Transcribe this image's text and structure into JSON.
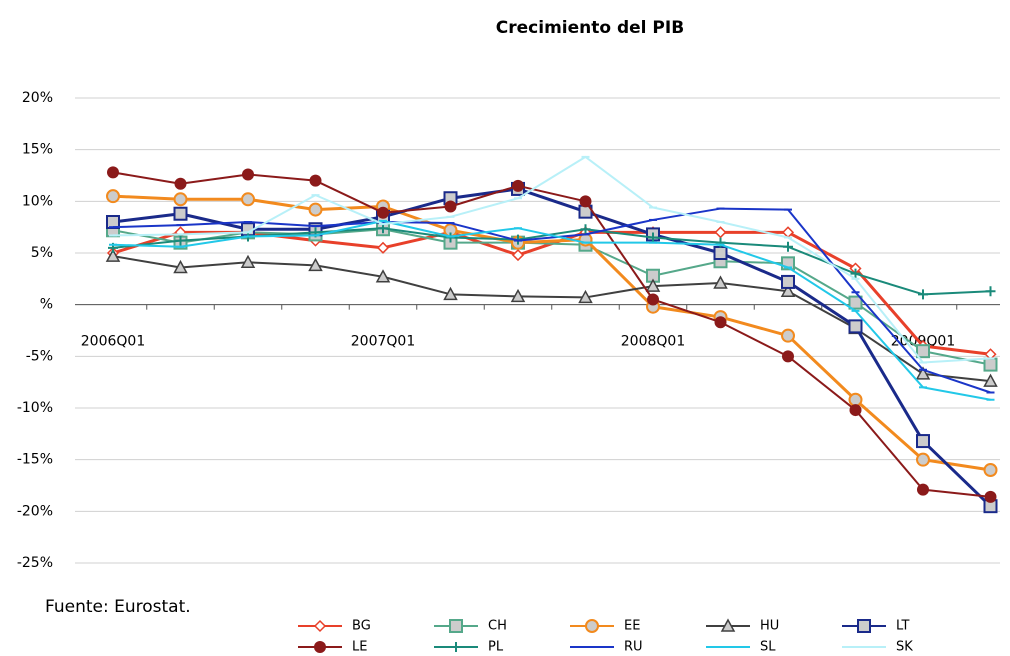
{
  "chart_data": {
    "type": "line",
    "title": "Crecimiento del PIB",
    "source": "Fuente: Eurostat.",
    "categories": [
      "2006Q01",
      null,
      null,
      null,
      "2007Q01",
      null,
      null,
      null,
      "2008Q01",
      null,
      null,
      null,
      "2009Q01",
      null
    ],
    "ylim": [
      -25,
      20
    ],
    "yticks": [
      {
        "value": -25,
        "label": "-25%"
      },
      {
        "value": -20,
        "label": "-20%"
      },
      {
        "value": -15,
        "label": "-15%"
      },
      {
        "value": -10,
        "label": "-10%"
      },
      {
        "value": -5,
        "label": "-5%"
      },
      {
        "value": 0,
        "label": "%"
      },
      {
        "value": 5,
        "label": "5%"
      },
      {
        "value": 10,
        "label": "10%"
      },
      {
        "value": 15,
        "label": "15%"
      },
      {
        "value": 20,
        "label": "20%"
      }
    ],
    "grid": true,
    "series": [
      {
        "name": "BG",
        "color": "#e8402a",
        "marker": "diamond",
        "values": [
          5.0,
          7.0,
          7.0,
          6.2,
          5.5,
          7.0,
          4.8,
          7.0,
          7.0,
          7.0,
          7.0,
          3.5,
          -4.0,
          -4.8
        ]
      },
      {
        "name": "CH",
        "color": "#55a88a",
        "marker": "square",
        "values": [
          7.2,
          6.0,
          7.0,
          6.8,
          7.3,
          6.0,
          6.0,
          5.8,
          2.8,
          4.2,
          4.0,
          0.2,
          -4.5,
          -5.8
        ]
      },
      {
        "name": "EE",
        "color": "#f28a1e",
        "marker": "circle",
        "values": [
          10.5,
          10.2,
          10.2,
          9.2,
          9.5,
          7.2,
          6.0,
          6.3,
          -0.2,
          -1.2,
          -3.0,
          -9.2,
          -15.0,
          -16.0
        ]
      },
      {
        "name": "HU",
        "color": "#404040",
        "marker": "triangle",
        "values": [
          4.7,
          3.6,
          4.1,
          3.8,
          2.7,
          1.0,
          0.8,
          0.7,
          1.8,
          2.1,
          1.3,
          -2.3,
          -6.7,
          -7.4
        ]
      },
      {
        "name": "LT",
        "color": "#1a2a8a",
        "marker": "square",
        "values": [
          8.0,
          8.8,
          7.3,
          7.3,
          8.5,
          10.3,
          11.2,
          9.0,
          6.8,
          5.0,
          2.2,
          -2.1,
          -13.2,
          -19.5
        ]
      },
      {
        "name": "LE",
        "color": "#8b1a1a",
        "marker": "dot",
        "values": [
          12.8,
          11.7,
          12.6,
          12.0,
          8.9,
          9.5,
          11.5,
          10.0,
          0.5,
          -1.7,
          -5.0,
          -10.2,
          -17.9,
          -18.6
        ]
      },
      {
        "name": "PL",
        "color": "#1a8a7a",
        "marker": "plus",
        "values": [
          5.5,
          6.2,
          6.6,
          7.0,
          7.4,
          6.5,
          6.3,
          7.3,
          6.5,
          6.0,
          5.6,
          3.0,
          1.0,
          1.3
        ]
      },
      {
        "name": "RU",
        "color": "#1a35c8",
        "marker": "dash",
        "values": [
          7.5,
          7.7,
          8.0,
          7.6,
          8.0,
          7.9,
          6.2,
          6.8,
          8.2,
          9.3,
          9.2,
          1.2,
          -6.3,
          -8.5
        ]
      },
      {
        "name": "SL",
        "color": "#22c8e8",
        "marker": "dash",
        "values": [
          5.8,
          5.6,
          6.6,
          6.7,
          8.1,
          6.6,
          7.4,
          6.0,
          6.0,
          5.8,
          3.6,
          -0.6,
          -8.0,
          -9.2
        ]
      },
      {
        "name": "SK",
        "color": "#b8f0f8",
        "marker": "dash",
        "values": [
          6.7,
          6.8,
          7.0,
          10.6,
          7.8,
          8.5,
          10.3,
          14.3,
          9.4,
          8.0,
          6.5,
          2.5,
          -5.6,
          -5.2
        ]
      }
    ]
  }
}
